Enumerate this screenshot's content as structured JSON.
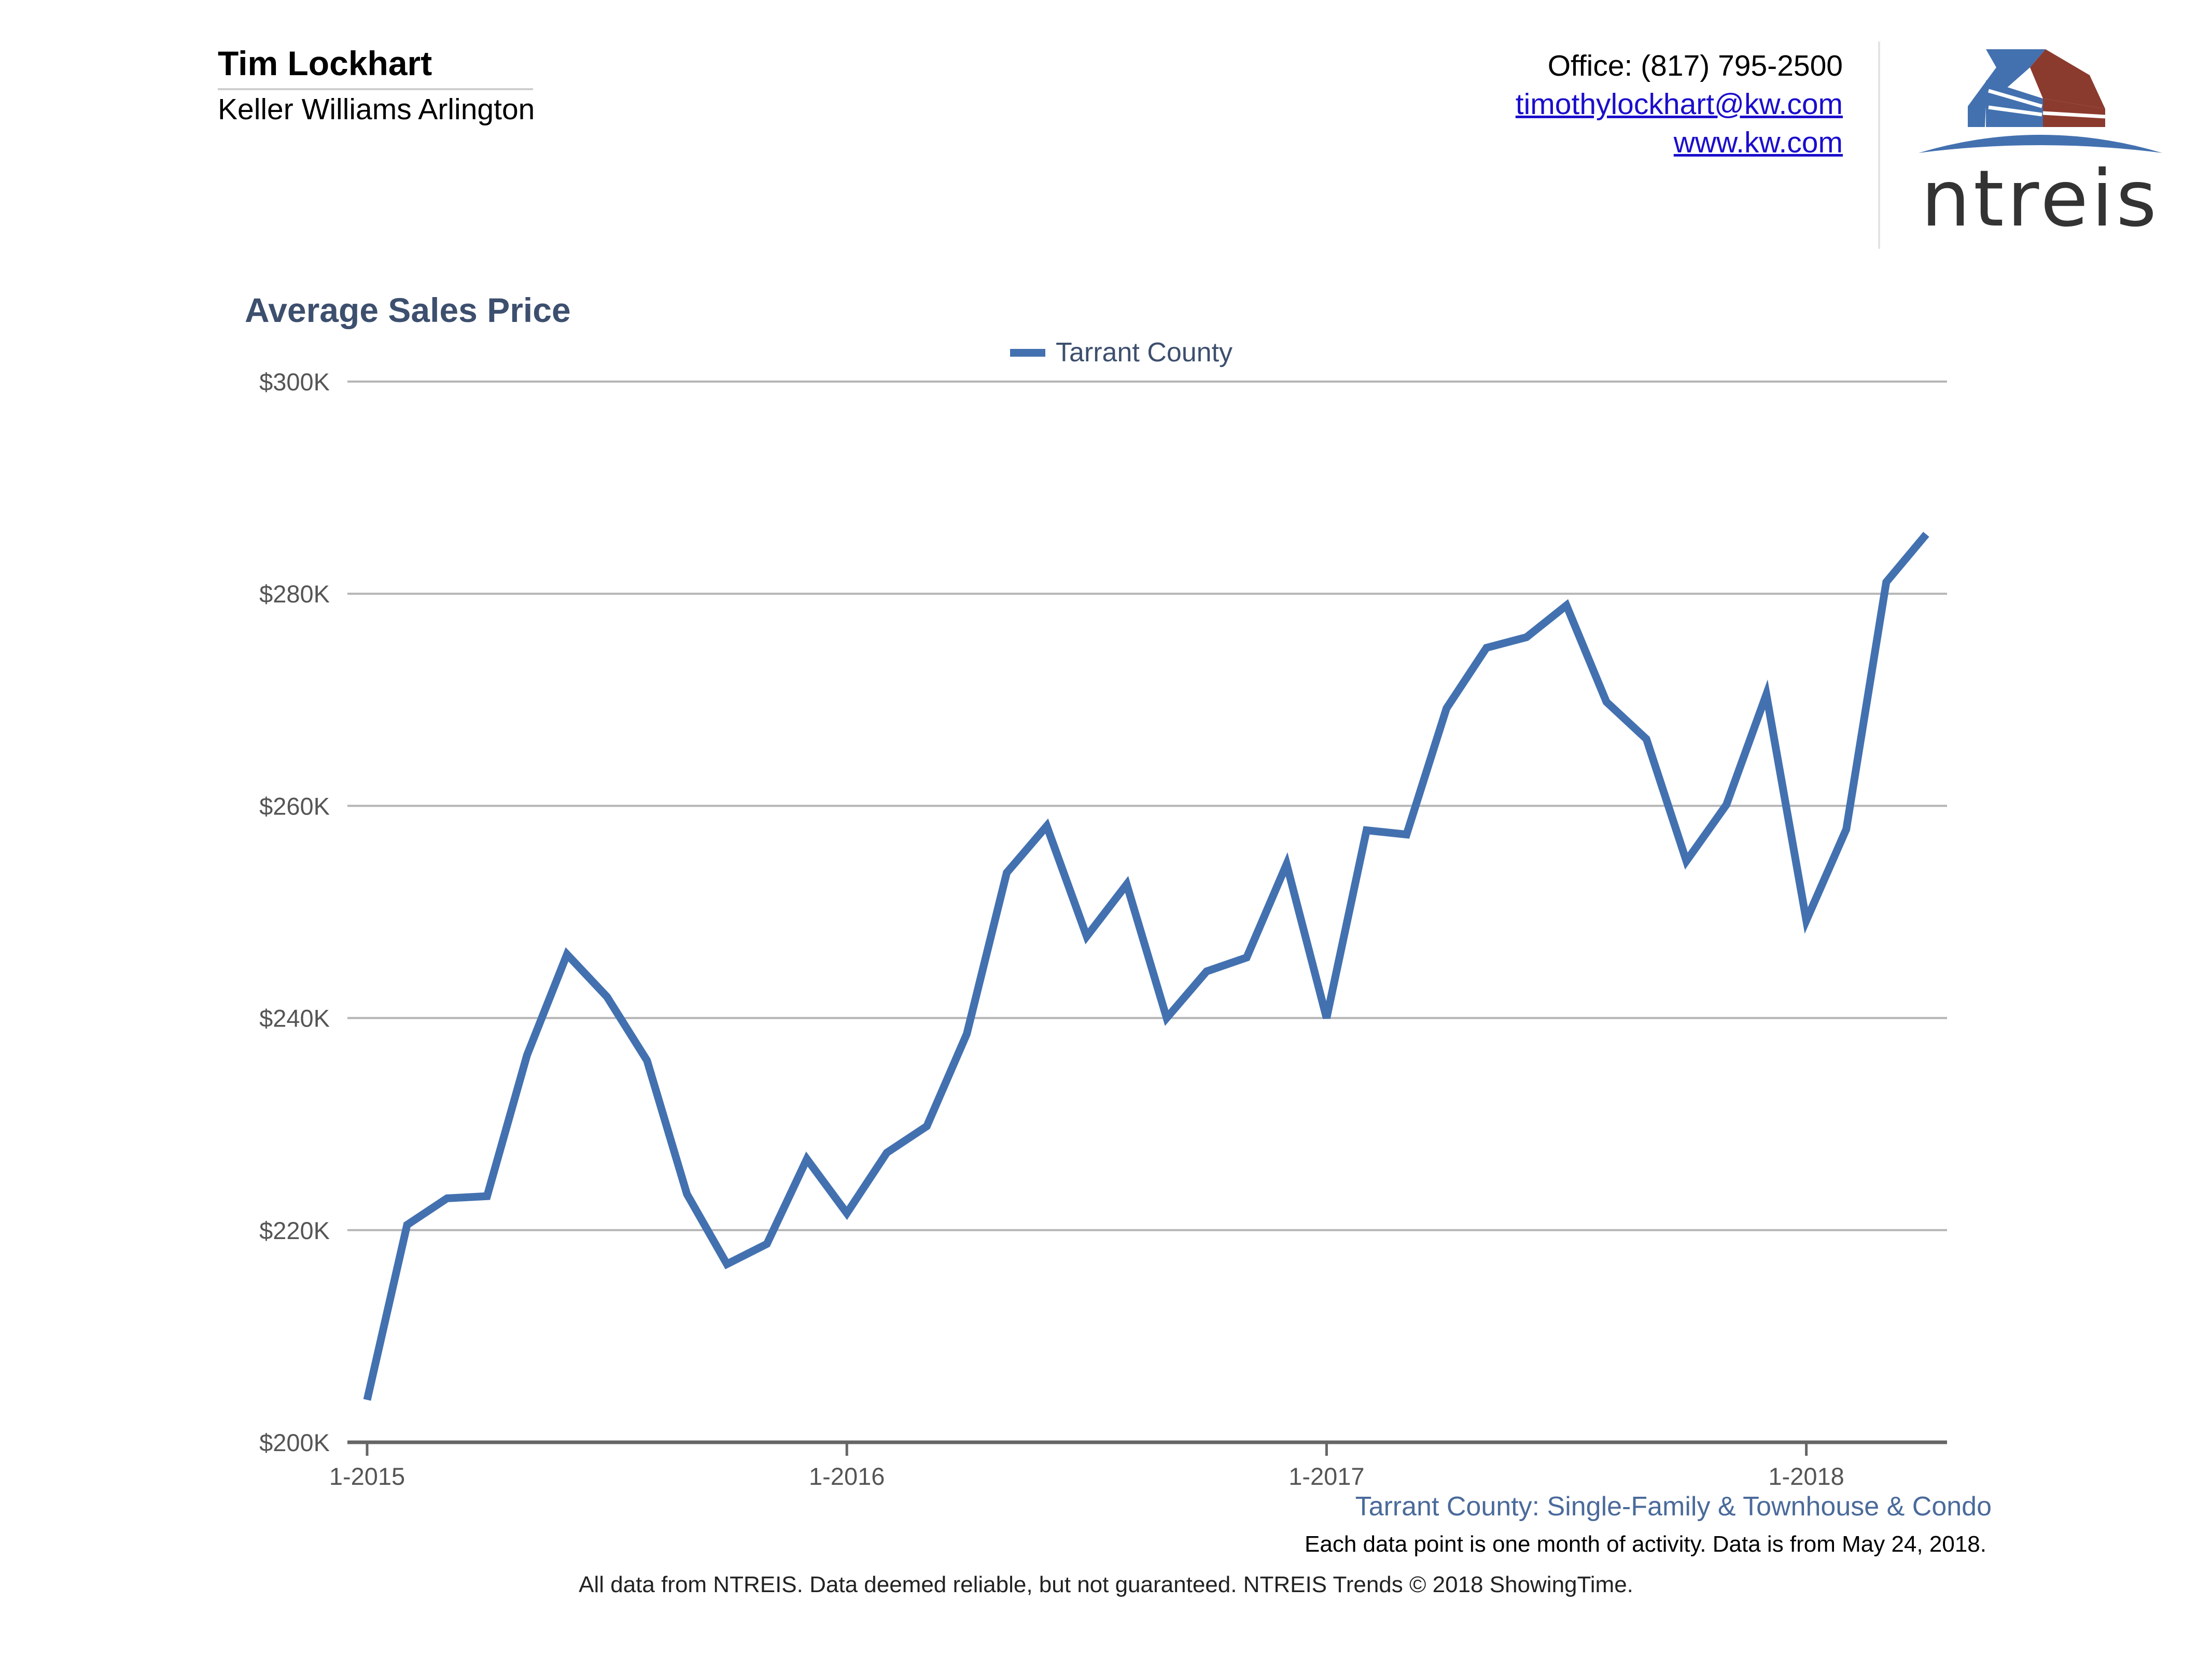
{
  "agent": {
    "name": "Tim Lockhart",
    "company": "Keller Williams Arlington"
  },
  "contact": {
    "office": "Office: (817) 795-2500",
    "email": "timothylockhart@kw.com",
    "website": "www.kw.com"
  },
  "logo": {
    "text": "ntreis",
    "icon": "building-roof-logo-icon",
    "colors": {
      "blue": "#4371b0",
      "red": "#8b3a2e",
      "text": "#333333"
    }
  },
  "chart_data": {
    "type": "line",
    "title": "Average Sales Price",
    "xlabel": "",
    "ylabel": "",
    "legend_position": "top-center",
    "grid": true,
    "ylim": [
      200000,
      300000
    ],
    "yticks": [
      200000,
      220000,
      240000,
      260000,
      280000,
      300000
    ],
    "ytick_labels": [
      "$200K",
      "$220K",
      "$240K",
      "$260K",
      "$280K",
      "$300K"
    ],
    "xticks": [
      "1-2015",
      "1-2016",
      "1-2017",
      "1-2018"
    ],
    "x": [
      "1-2015",
      "2-2015",
      "3-2015",
      "4-2015",
      "5-2015",
      "6-2015",
      "7-2015",
      "8-2015",
      "9-2015",
      "10-2015",
      "11-2015",
      "12-2015",
      "1-2016",
      "2-2016",
      "3-2016",
      "4-2016",
      "5-2016",
      "6-2016",
      "7-2016",
      "8-2016",
      "9-2016",
      "10-2016",
      "11-2016",
      "12-2016",
      "1-2017",
      "2-2017",
      "3-2017",
      "4-2017",
      "5-2017",
      "6-2017",
      "7-2017",
      "8-2017",
      "9-2017",
      "10-2017",
      "11-2017",
      "12-2017",
      "1-2018",
      "2-2018",
      "3-2018",
      "4-2018"
    ],
    "series": [
      {
        "name": "Tarrant County",
        "color": "#4371b0",
        "values": [
          204000,
          220500,
          223000,
          223200,
          236500,
          246000,
          242000,
          236000,
          223400,
          216800,
          218700,
          226700,
          221600,
          227300,
          229800,
          238500,
          253700,
          258100,
          247700,
          252600,
          240000,
          244400,
          245700,
          254500,
          240000,
          257700,
          257300,
          269200,
          274900,
          275900,
          278900,
          269800,
          266300,
          254800,
          260100,
          270500,
          249200,
          257800,
          281100,
          285600
        ]
      }
    ]
  },
  "footer": {
    "caption": "Tarrant County: Single-Family & Townhouse & Condo",
    "note": "Each data point is one month of activity. Data is from May 24, 2018.",
    "disclaimer": "All data from NTREIS. Data deemed reliable, but not guaranteed. NTREIS Trends © 2018 ShowingTime."
  }
}
